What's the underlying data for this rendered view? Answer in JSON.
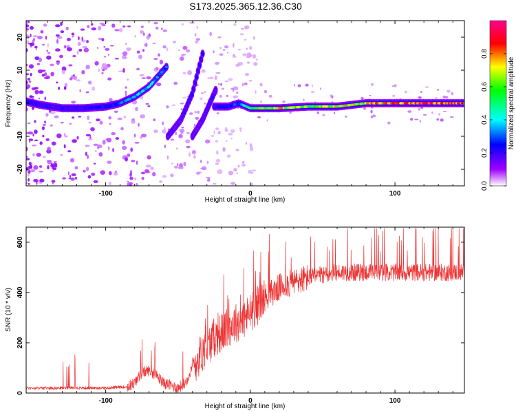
{
  "title": "S173.2025.365.12.36.C30",
  "chart_data": [
    {
      "type": "heatmap",
      "xlabel": "Height of straight line (km)",
      "ylabel": "Frequency (Hz)",
      "xlim": [
        -155,
        148
      ],
      "ylim": [
        -25,
        25
      ],
      "xticks": [
        -100,
        0,
        100
      ],
      "xtick_labels": [
        "-100",
        "0",
        "100"
      ],
      "yticks": [
        -20,
        -10,
        0,
        10,
        20
      ],
      "ytick_labels": [
        "-20",
        "-10",
        "0",
        "10",
        "20"
      ],
      "colorbar": {
        "label": "Normalized spectral amplitude",
        "range": [
          0,
          1
        ],
        "ticks": [
          0.0,
          0.2,
          0.4,
          0.6,
          0.8
        ],
        "tick_labels": [
          "0.0",
          "0.2",
          "0.4",
          "0.6",
          "0.8"
        ],
        "colors": [
          "#ffffff",
          "#a000ff",
          "#0000ff",
          "#00ffff",
          "#00ff00",
          "#ffff00",
          "#ff0000",
          "#ff00aa"
        ]
      },
      "series": [
        {
          "name": "main trace",
          "x": [
            -155,
            -145,
            -130,
            -115,
            -100,
            -90,
            -80,
            -70,
            -62,
            -58
          ],
          "y": [
            0.5,
            -0.5,
            -1.5,
            -1.5,
            -1,
            0,
            2,
            5,
            9,
            11
          ],
          "amplitude": [
            0.25,
            0.2,
            0.2,
            0.2,
            0.25,
            0.3,
            0.35,
            0.4,
            0.3,
            0.3
          ]
        },
        {
          "name": "branch 1",
          "x": [
            -57,
            -48,
            -40,
            -36,
            -33
          ],
          "y": [
            -10,
            -5,
            3,
            10,
            15
          ],
          "amplitude": [
            0.15,
            0.15,
            0.2,
            0.2,
            0.2
          ]
        },
        {
          "name": "branch 2",
          "x": [
            -40,
            -33,
            -27,
            -24
          ],
          "y": [
            -10,
            -5,
            1,
            4
          ],
          "amplitude": [
            0.15,
            0.15,
            0.2,
            0.15
          ]
        },
        {
          "name": "stable trace",
          "x": [
            -25,
            -15,
            -8,
            0,
            20,
            40,
            60,
            80,
            100,
            120,
            148
          ],
          "y": [
            -1,
            -1,
            0,
            -1.5,
            -1.5,
            -1,
            -1,
            0,
            0,
            0,
            0
          ],
          "amplitude": [
            0.2,
            0.25,
            0.3,
            0.5,
            0.75,
            0.6,
            0.7,
            0.7,
            0.85,
            0.85,
            0.85
          ]
        }
      ]
    },
    {
      "type": "line",
      "xlabel": "Height of straight line (km)",
      "ylabel": "SNR (10 * v/v)",
      "xlim": [
        -155,
        148
      ],
      "ylim": [
        0,
        660
      ],
      "xticks": [
        -100,
        0,
        100
      ],
      "xtick_labels": [
        "-100",
        "0",
        "100"
      ],
      "yticks": [
        0,
        200,
        400,
        600
      ],
      "ytick_labels": [
        "0",
        "200",
        "400",
        "600"
      ],
      "series": [
        {
          "name": "SNR",
          "color": "#ee3333",
          "x": [
            -155,
            -140,
            -120,
            -100,
            -85,
            -80,
            -75,
            -70,
            -65,
            -60,
            -50,
            -45,
            -40,
            -35,
            -30,
            -25,
            -20,
            -15,
            -10,
            -5,
            0,
            5,
            10,
            15,
            20,
            30,
            40,
            50,
            60,
            70,
            80,
            90,
            100,
            110,
            120,
            130,
            140,
            148
          ],
          "y": [
            20,
            20,
            20,
            20,
            25,
            40,
            80,
            90,
            70,
            40,
            20,
            40,
            100,
            150,
            180,
            220,
            240,
            260,
            280,
            290,
            320,
            350,
            380,
            400,
            420,
            440,
            460,
            470,
            480,
            480,
            480,
            480,
            480,
            480,
            480,
            480,
            480,
            480
          ]
        }
      ]
    }
  ]
}
